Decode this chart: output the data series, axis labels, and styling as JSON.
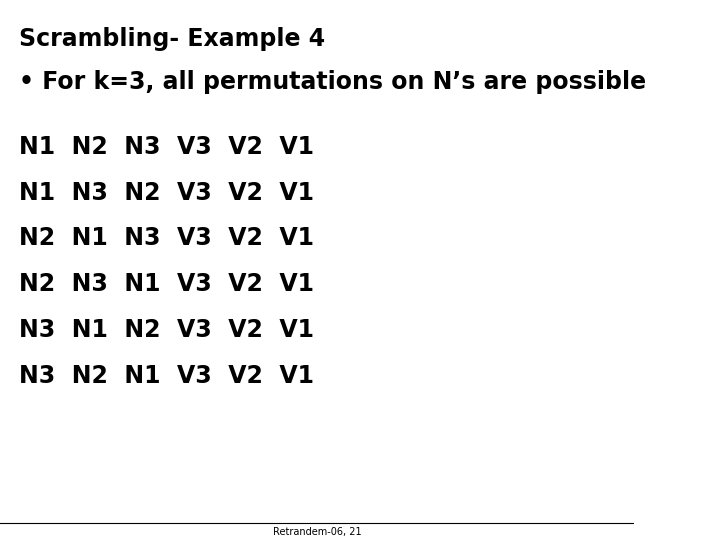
{
  "title": "Scrambling- Example 4",
  "bullet": "• For k=3, all permutations on N’s are possible",
  "permutations": [
    "N1  N2  N3  V3  V2  V1",
    "N1  N3  N2  V3  V2  V1",
    "N2  N1  N3  V3  V2  V1",
    "N2  N3  N1  V3  V2  V1",
    "N3  N1  N2  V3  V2  V1",
    "N3  N2  N1  V3  V2  V1"
  ],
  "footer": "Retrandem-06, 21",
  "bg_color": "#ffffff",
  "text_color": "#000000",
  "title_fontsize": 17,
  "bullet_fontsize": 17,
  "perm_fontsize": 17,
  "footer_fontsize": 7
}
